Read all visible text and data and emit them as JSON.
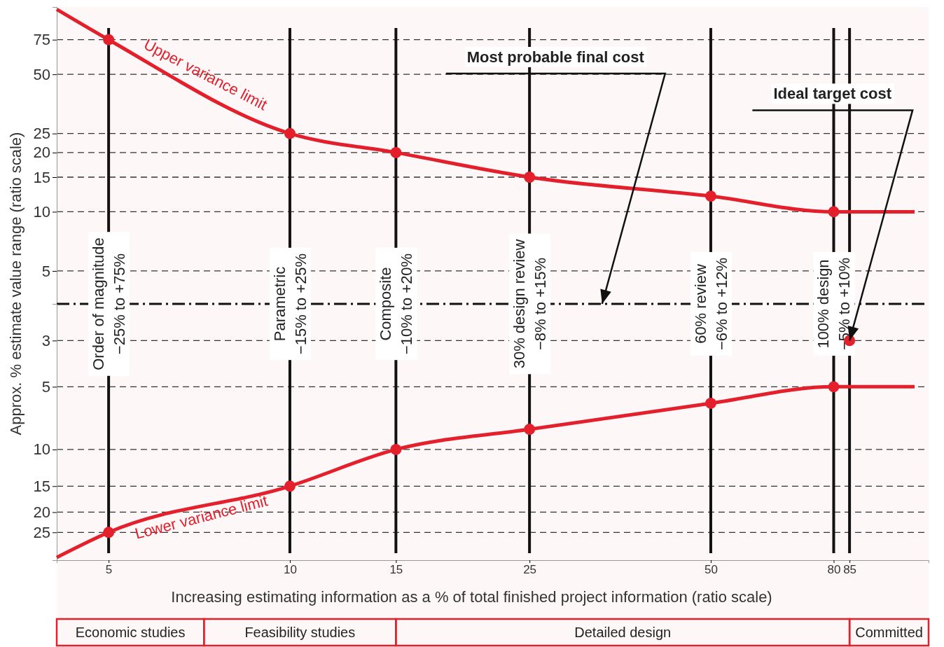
{
  "chart_data": [
    {
      "type": "line",
      "ylabel": "Approx. % estimate value range (ratio scale)",
      "log": "xy",
      "grid": "y",
      "tick_labels": "y",
      "xlim": [
        4.1,
        115
      ],
      "ylim": [
        3.4,
        110
      ],
      "yticks": [
        75,
        50,
        25,
        20,
        15,
        10,
        5
      ],
      "series": [
        {
          "name": "Upper variance limit",
          "color": "#e3202b",
          "x": [
            4.1,
            5,
            10,
            15,
            25,
            50,
            80,
            109
          ],
          "values": [
            107,
            75,
            25,
            20,
            15,
            12,
            10,
            10
          ]
        },
        {
          "type": "scatter",
          "color": "#e3202b",
          "x": [
            5,
            10,
            15,
            25,
            50,
            80
          ],
          "values": [
            75,
            25,
            20,
            15,
            12,
            10
          ]
        }
      ],
      "ref_lines": [
        {
          "axis": "x",
          "value": 5,
          "color": "#111111"
        },
        {
          "axis": "x",
          "value": 10,
          "color": "#111111"
        },
        {
          "axis": "x",
          "value": 15,
          "color": "#111111"
        },
        {
          "axis": "x",
          "value": 25,
          "color": "#111111"
        },
        {
          "axis": "x",
          "value": 50,
          "color": "#111111"
        },
        {
          "axis": "x",
          "value": 80,
          "color": "#111111"
        },
        {
          "axis": "x",
          "value": 85,
          "color": "#111111"
        }
      ]
    },
    {
      "type": "line",
      "xlabel": "Increasing estimating information as a % of total finished project information (ratio scale)",
      "log": "xy",
      "grid": "y",
      "xlim": [
        4.1,
        115
      ],
      "xticks": [
        5,
        10,
        15,
        25,
        50,
        80,
        85
      ],
      "ylim": [
        34,
        2
      ],
      "yticks": [
        3,
        5,
        10,
        15,
        20,
        25
      ],
      "series": [
        {
          "name": "Lower variance limit",
          "color": "#e3202b",
          "x": [
            4.1,
            5,
            10,
            15,
            25,
            50,
            80,
            109
          ],
          "values": [
            33,
            25,
            15,
            10,
            8,
            6,
            5,
            5
          ]
        },
        {
          "type": "scatter",
          "color": "#e3202b",
          "x": [
            5,
            10,
            15,
            25,
            50,
            80
          ],
          "values": [
            25,
            15,
            10,
            8,
            6,
            5
          ]
        },
        {
          "type": "scatter",
          "color": "#e3202b",
          "x": [
            85
          ],
          "values": [
            3
          ]
        }
      ],
      "ref_lines": [
        {
          "axis": "y",
          "value": 2,
          "color": "#111111",
          "line_style": "dashdot"
        },
        {
          "axis": "x",
          "value": 5,
          "label": "Order of magnitude\n−25% to +75%",
          "color": "#111111"
        },
        {
          "axis": "x",
          "value": 10,
          "label": "Parametric\n−15% to +25%",
          "color": "#111111"
        },
        {
          "axis": "x",
          "value": 15,
          "label": "Composite\n−10% to +20%",
          "color": "#111111"
        },
        {
          "axis": "x",
          "value": 25,
          "label": "30% design review\n−8% to +15%",
          "color": "#111111"
        },
        {
          "axis": "x",
          "value": 50,
          "label": "60% review\n−6% to +12%",
          "color": "#111111"
        },
        {
          "axis": "x",
          "value": 80,
          "label": "100% design\n−5% to +10%",
          "color": "#111111"
        },
        {
          "axis": "x",
          "value": 85,
          "color": "#111111"
        }
      ],
      "annotations": [
        {
          "text": "Most probable final cost",
          "x": 33,
          "y": 2
        },
        {
          "text": "Ideal target cost",
          "x": 85,
          "y": 3
        }
      ],
      "bands": [
        {
          "axis": "x",
          "from": 4.1,
          "to": 7.2,
          "label": "Economic studies",
          "color": "#e3202b"
        },
        {
          "axis": "x",
          "from": 7.2,
          "to": 15,
          "label": "Feasibility studies",
          "color": "#e3202b"
        },
        {
          "axis": "x",
          "from": 15,
          "to": 85,
          "label": "Detailed design",
          "color": "#e3202b"
        },
        {
          "axis": "x",
          "from": 85,
          "to": 115,
          "label": "Committed",
          "color": "#e3202b"
        }
      ]
    }
  ]
}
